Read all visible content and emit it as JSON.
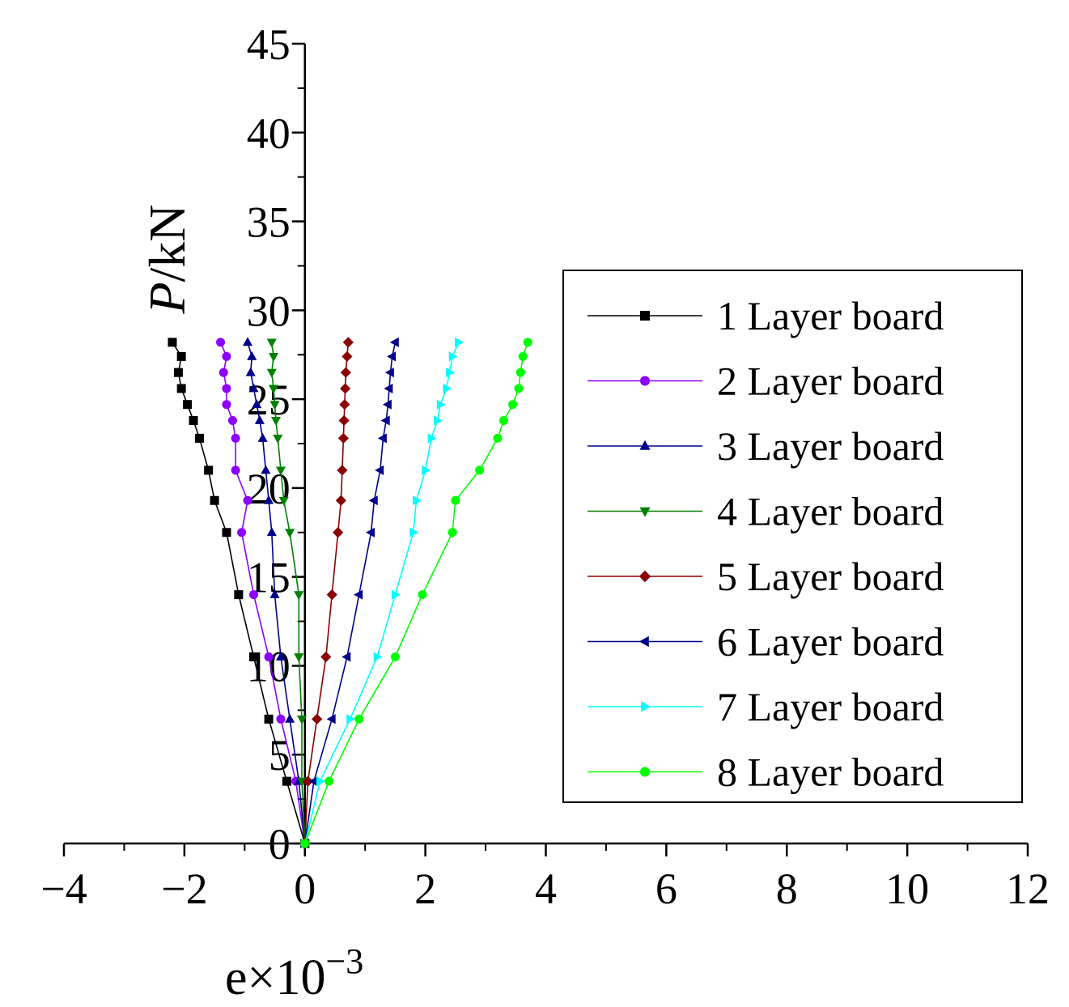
{
  "chart_data": {
    "type": "line",
    "xlabel": "e×10",
    "xlabel_exp": "−3",
    "ylabel_italic": "P",
    "ylabel_rest": "/kN",
    "xlim": [
      -4,
      12
    ],
    "ylim": [
      0,
      45
    ],
    "x_ticks": [
      -4,
      -2,
      0,
      2,
      4,
      6,
      8,
      10,
      12
    ],
    "x_tick_labels": [
      "−4",
      "−2",
      "0",
      "2",
      "4",
      "6",
      "8",
      "10",
      "12"
    ],
    "y_ticks": [
      0,
      5,
      10,
      15,
      20,
      25,
      30,
      35,
      40,
      45
    ],
    "y_tick_labels": [
      "0",
      "5",
      "10",
      "15",
      "20",
      "25",
      "30",
      "35",
      "40",
      "45"
    ],
    "grid": false,
    "legend_position": "center-right",
    "y": [
      0,
      3.5,
      7.0,
      10.5,
      14.0,
      17.5,
      19.3,
      21.0,
      22.8,
      23.8,
      24.7,
      25.6,
      26.5,
      27.4,
      28.2
    ],
    "series": [
      {
        "name": "1 Layer board",
        "color": "#000000",
        "marker": "square",
        "x": [
          0,
          -0.3,
          -0.6,
          -0.85,
          -1.1,
          -1.3,
          -1.5,
          -1.6,
          -1.75,
          -1.85,
          -1.95,
          -2.05,
          -2.1,
          -2.05,
          -2.2
        ]
      },
      {
        "name": "2 Layer board",
        "color": "#8B00FF",
        "marker": "circle",
        "x": [
          0,
          -0.15,
          -0.4,
          -0.6,
          -0.85,
          -1.05,
          -0.95,
          -1.15,
          -1.15,
          -1.2,
          -1.3,
          -1.3,
          -1.35,
          -1.3,
          -1.4
        ]
      },
      {
        "name": "3 Layer board",
        "color": "#00008B",
        "marker": "triangle-up",
        "x": [
          0,
          -0.1,
          -0.25,
          -0.4,
          -0.5,
          -0.55,
          -0.6,
          -0.65,
          -0.7,
          -0.75,
          -0.8,
          -0.85,
          -0.9,
          -0.88,
          -0.95
        ]
      },
      {
        "name": "4 Layer board",
        "color": "#008000",
        "marker": "triangle-down",
        "x": [
          0,
          -0.05,
          -0.05,
          -0.1,
          -0.1,
          -0.25,
          -0.35,
          -0.4,
          -0.45,
          -0.48,
          -0.5,
          -0.52,
          -0.55,
          -0.52,
          -0.55
        ]
      },
      {
        "name": "5 Layer board",
        "color": "#8B0000",
        "marker": "diamond",
        "x": [
          0,
          0.05,
          0.2,
          0.35,
          0.45,
          0.55,
          0.6,
          0.62,
          0.64,
          0.65,
          0.66,
          0.67,
          0.68,
          0.7,
          0.72
        ]
      },
      {
        "name": "6 Layer board",
        "color": "#00008B",
        "marker": "triangle-left",
        "x": [
          0,
          0.15,
          0.45,
          0.7,
          0.9,
          1.1,
          1.15,
          1.25,
          1.3,
          1.35,
          1.38,
          1.4,
          1.42,
          1.45,
          1.5
        ]
      },
      {
        "name": "7 Layer board",
        "color": "#00FFFF",
        "marker": "triangle-right",
        "x": [
          0,
          0.25,
          0.75,
          1.2,
          1.5,
          1.8,
          1.85,
          2.0,
          2.1,
          2.2,
          2.25,
          2.35,
          2.4,
          2.45,
          2.55
        ]
      },
      {
        "name": "8 Layer board",
        "color": "#00FF00",
        "marker": "circle",
        "x": [
          0,
          0.4,
          0.9,
          1.5,
          1.95,
          2.45,
          2.5,
          2.9,
          3.2,
          3.3,
          3.45,
          3.55,
          3.58,
          3.62,
          3.7
        ]
      }
    ]
  }
}
